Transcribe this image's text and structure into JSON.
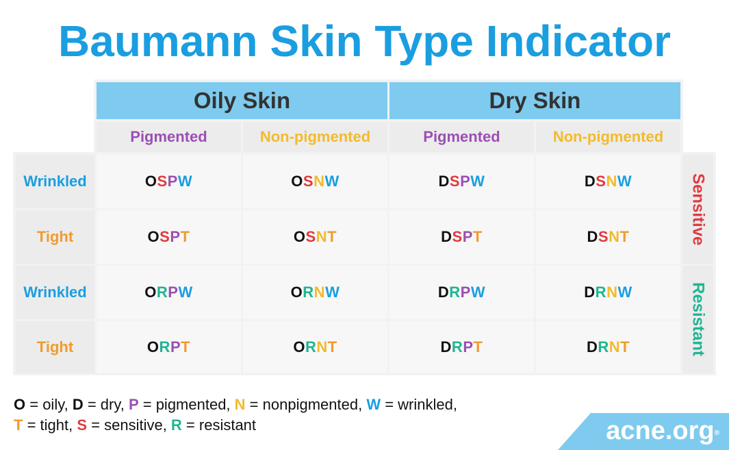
{
  "title": "Baumann Skin Type Indicator",
  "colors": {
    "title_blue": "#1a9ee0",
    "header_blue": "#7ecbef",
    "oily_dry": "#111111",
    "sensitive": "#e03a3e",
    "resistant": "#1fb590",
    "pigmented": "#9b4fb3",
    "nonpigmented": "#f2bb2b",
    "wrinkled": "#1a9ee0",
    "tight": "#f29a2e"
  },
  "headers": {
    "oily": "Oily Skin",
    "dry": "Dry Skin",
    "sub": [
      "Pigmented",
      "Non-pigmented",
      "Pigmented",
      "Non-pigmented"
    ]
  },
  "row_labels": [
    "Wrinkled",
    "Tight",
    "Wrinkled",
    "Tight"
  ],
  "side_labels": {
    "sensitive": "Sensitive",
    "resistant": "Resistant"
  },
  "grid": [
    [
      [
        "O",
        "S",
        "P",
        "W"
      ],
      [
        "O",
        "S",
        "N",
        "W"
      ],
      [
        "D",
        "S",
        "P",
        "W"
      ],
      [
        "D",
        "S",
        "N",
        "W"
      ]
    ],
    [
      [
        "O",
        "S",
        "P",
        "T"
      ],
      [
        "O",
        "S",
        "N",
        "T"
      ],
      [
        "D",
        "S",
        "P",
        "T"
      ],
      [
        "D",
        "S",
        "N",
        "T"
      ]
    ],
    [
      [
        "O",
        "R",
        "P",
        "W"
      ],
      [
        "O",
        "R",
        "N",
        "W"
      ],
      [
        "D",
        "R",
        "P",
        "W"
      ],
      [
        "D",
        "R",
        "N",
        "W"
      ]
    ],
    [
      [
        "O",
        "R",
        "P",
        "T"
      ],
      [
        "O",
        "R",
        "N",
        "T"
      ],
      [
        "D",
        "R",
        "P",
        "T"
      ],
      [
        "D",
        "R",
        "N",
        "T"
      ]
    ]
  ],
  "legend": {
    "line1": [
      {
        "key": "O",
        "text": " = oily, "
      },
      {
        "key": "D",
        "text": " = dry, "
      },
      {
        "key": "P",
        "text": " = pigmented, "
      },
      {
        "key": "N",
        "text": " = nonpigmented, "
      },
      {
        "key": "W",
        "text": " = wrinkled,"
      }
    ],
    "line2": [
      {
        "key": "T",
        "text": " = tight, "
      },
      {
        "key": "S",
        "text": " = sensitive, "
      },
      {
        "key": "R",
        "text": " = resistant"
      }
    ]
  },
  "brand": {
    "name": "acne.org",
    "reg": "®"
  }
}
